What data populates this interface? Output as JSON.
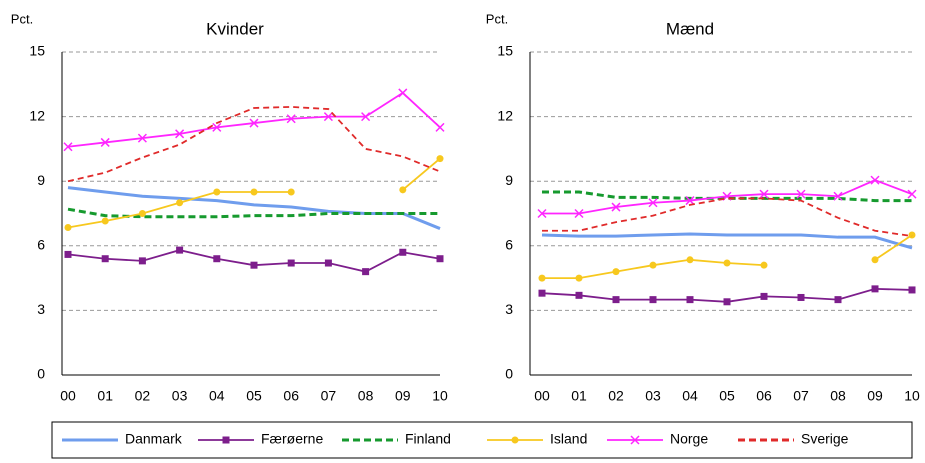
{
  "chart_data": [
    {
      "type": "line",
      "title": "Kvinder",
      "y_label": "Pct.",
      "categories": [
        "00",
        "01",
        "02",
        "03",
        "04",
        "05",
        "06",
        "07",
        "08",
        "09",
        "10"
      ],
      "ylim": [
        0,
        15
      ],
      "yticks": [
        0,
        3,
        6,
        9,
        12,
        15
      ],
      "grid": true,
      "series": [
        {
          "name": "Danmark",
          "color": "#6f9ded",
          "dash": false,
          "marker": "none",
          "values": [
            8.7,
            8.5,
            8.3,
            8.2,
            8.1,
            7.9,
            7.8,
            7.6,
            7.5,
            7.5,
            6.8
          ]
        },
        {
          "name": "Færøerne",
          "color": "#7d1e8c",
          "dash": false,
          "marker": "square",
          "values": [
            5.6,
            5.4,
            5.3,
            5.8,
            5.4,
            5.1,
            5.2,
            5.2,
            4.8,
            5.7,
            5.4
          ]
        },
        {
          "name": "Finland",
          "color": "#169a2e",
          "dash": true,
          "marker": "none",
          "values": [
            7.7,
            7.4,
            7.35,
            7.35,
            7.35,
            7.4,
            7.4,
            7.5,
            7.5,
            7.5,
            7.5
          ]
        },
        {
          "name": "Island",
          "color": "#f7c81e",
          "dash": false,
          "marker": "circle",
          "values": [
            6.85,
            7.15,
            7.5,
            8.0,
            8.5,
            8.5,
            8.5,
            null,
            null,
            8.6,
            10.05
          ]
        },
        {
          "name": "Norge",
          "color": "#ff25ff",
          "dash": false,
          "marker": "x",
          "values": [
            10.6,
            10.8,
            11.0,
            11.2,
            11.5,
            11.7,
            11.9,
            12.0,
            12.0,
            13.1,
            11.5
          ]
        },
        {
          "name": "Sverige",
          "color": "#e02a2a",
          "dash": true,
          "marker": "none",
          "values": [
            9.0,
            9.4,
            10.1,
            10.7,
            11.7,
            12.4,
            12.45,
            12.35,
            10.5,
            10.15,
            9.45
          ]
        }
      ]
    },
    {
      "type": "line",
      "title": "Mænd",
      "y_label": "Pct.",
      "categories": [
        "00",
        "01",
        "02",
        "03",
        "04",
        "05",
        "06",
        "07",
        "08",
        "09",
        "10"
      ],
      "ylim": [
        0,
        15
      ],
      "yticks": [
        0,
        3,
        6,
        9,
        12,
        15
      ],
      "grid": true,
      "series": [
        {
          "name": "Danmark",
          "color": "#6f9ded",
          "dash": false,
          "marker": "none",
          "values": [
            6.5,
            6.45,
            6.45,
            6.5,
            6.55,
            6.5,
            6.5,
            6.5,
            6.4,
            6.4,
            5.9
          ]
        },
        {
          "name": "Færøerne",
          "color": "#7d1e8c",
          "dash": false,
          "marker": "square",
          "values": [
            3.8,
            3.7,
            3.5,
            3.5,
            3.5,
            3.4,
            3.65,
            3.6,
            3.5,
            4.0,
            3.95
          ]
        },
        {
          "name": "Finland",
          "color": "#169a2e",
          "dash": true,
          "marker": "none",
          "values": [
            8.5,
            8.5,
            8.25,
            8.25,
            8.2,
            8.2,
            8.2,
            8.2,
            8.2,
            8.1,
            8.1
          ]
        },
        {
          "name": "Island",
          "color": "#f7c81e",
          "dash": false,
          "marker": "circle",
          "values": [
            4.5,
            4.5,
            4.8,
            5.1,
            5.35,
            5.2,
            5.1,
            null,
            null,
            5.35,
            6.5
          ]
        },
        {
          "name": "Norge",
          "color": "#ff25ff",
          "dash": false,
          "marker": "x",
          "values": [
            7.5,
            7.5,
            7.8,
            8.0,
            8.1,
            8.3,
            8.4,
            8.4,
            8.3,
            9.05,
            8.4
          ]
        },
        {
          "name": "Sverige",
          "color": "#e02a2a",
          "dash": true,
          "marker": "none",
          "values": [
            6.7,
            6.7,
            7.1,
            7.4,
            7.9,
            8.2,
            8.2,
            8.1,
            7.3,
            6.7,
            6.45
          ]
        }
      ]
    }
  ]
}
